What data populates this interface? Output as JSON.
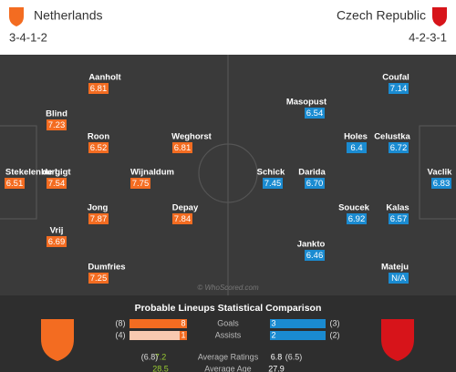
{
  "header": {
    "home": {
      "name": "Netherlands",
      "formation": "3-4-1-2"
    },
    "away": {
      "name": "Czech Republic",
      "formation": "4-2-3-1"
    }
  },
  "home_players": [
    {
      "name": "Stekelenburg",
      "rating": "6.51"
    },
    {
      "name": "de Ligt",
      "rating": "7.54"
    },
    {
      "name": "Blind",
      "rating": "7.23"
    },
    {
      "name": "Vrij",
      "rating": "6.69"
    },
    {
      "name": "Aanholt",
      "rating": "6.81"
    },
    {
      "name": "Roon",
      "rating": "6.52"
    },
    {
      "name": "Jong",
      "rating": "7.87"
    },
    {
      "name": "Dumfries",
      "rating": "7.25"
    },
    {
      "name": "Wijnaldum",
      "rating": "7.75"
    },
    {
      "name": "Weghorst",
      "rating": "6.81"
    },
    {
      "name": "Depay",
      "rating": "7.84"
    }
  ],
  "away_players": [
    {
      "name": "Vaclik",
      "rating": "6.83"
    },
    {
      "name": "Coufal",
      "rating": "7.14"
    },
    {
      "name": "Celustka",
      "rating": "6.72"
    },
    {
      "name": "Kalas",
      "rating": "6.57"
    },
    {
      "name": "Mateju",
      "rating": "N/A"
    },
    {
      "name": "Holes",
      "rating": "6.4"
    },
    {
      "name": "Soucek",
      "rating": "6.92"
    },
    {
      "name": "Masopust",
      "rating": "6.54"
    },
    {
      "name": "Darida",
      "rating": "6.70"
    },
    {
      "name": "Jankto",
      "rating": "6.46"
    },
    {
      "name": "Schick",
      "rating": "7.45"
    }
  ],
  "watermark": "© WhoScored.com",
  "comparison": {
    "title": "Probable Lineups Statistical Comparison",
    "rows": [
      {
        "label": "Goals",
        "home_total": "(8)",
        "home": "8",
        "away": "3",
        "away_total": "(3)"
      },
      {
        "label": "Assists",
        "home_total": "(4)",
        "home": "1",
        "away": "2",
        "away_total": "(2)"
      },
      {
        "label": "Average Ratings",
        "home_total": "(6.8)",
        "home": "7.2",
        "away": "6.8",
        "away_total": "(6.5)"
      },
      {
        "label": "Average Age",
        "home": "28.5",
        "away": "27.9"
      }
    ]
  }
}
